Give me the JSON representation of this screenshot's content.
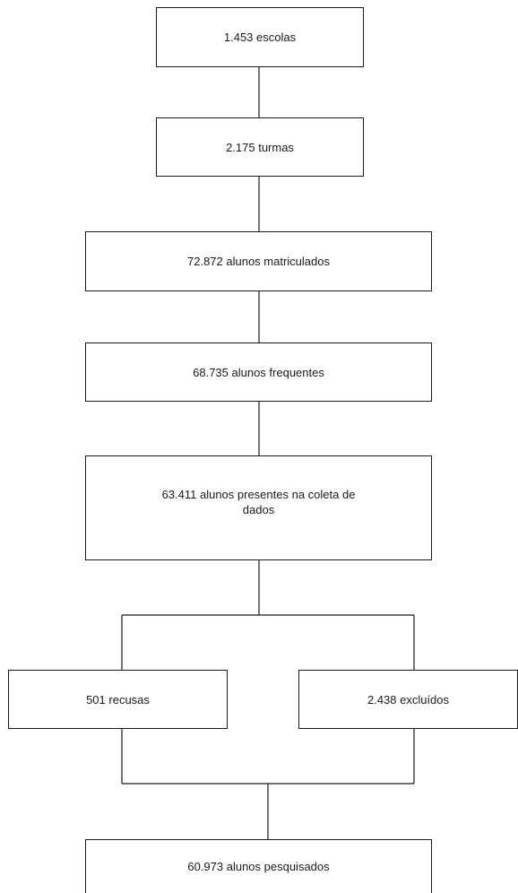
{
  "flowchart": {
    "nodes": {
      "escolas": "1.453 escolas",
      "turmas": "2.175 turmas",
      "matriculados": "72.872 alunos matriculados",
      "frequentes": "68.735 alunos frequentes",
      "presentes": "63.411 alunos presentes na coleta de dados",
      "recusas": "501 recusas",
      "excluidos": "2.438 excluídos",
      "pesquisados": "60.973 alunos pesquisados"
    },
    "edges": [
      {
        "from": "escolas",
        "to": "turmas"
      },
      {
        "from": "turmas",
        "to": "matriculados"
      },
      {
        "from": "matriculados",
        "to": "frequentes"
      },
      {
        "from": "frequentes",
        "to": "presentes"
      },
      {
        "from": "presentes",
        "to": "recusas"
      },
      {
        "from": "presentes",
        "to": "excluidos"
      },
      {
        "from": "recusas",
        "to": "pesquisados"
      },
      {
        "from": "excluidos",
        "to": "pesquisados"
      }
    ]
  }
}
